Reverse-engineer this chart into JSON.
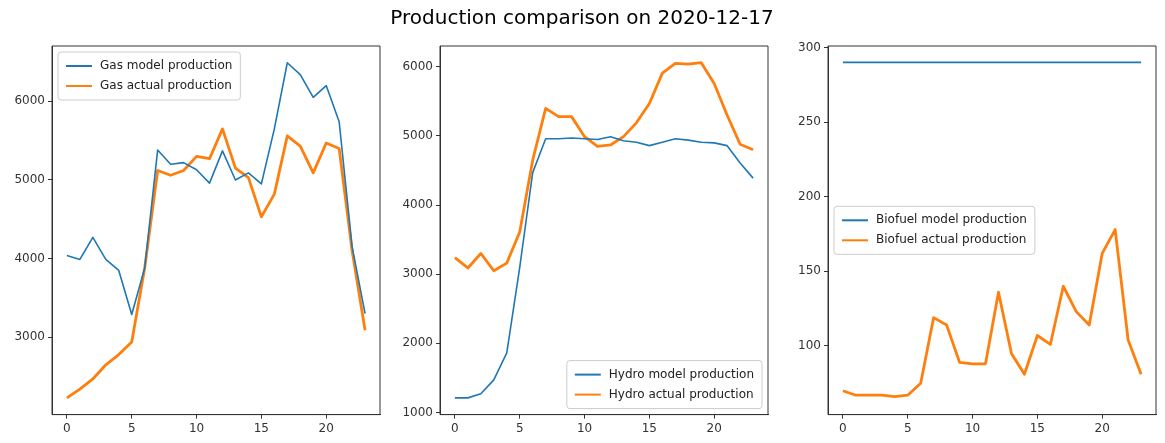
{
  "chart_data": [
    {
      "type": "line",
      "x": [
        0,
        1,
        2,
        3,
        4,
        5,
        6,
        7,
        8,
        9,
        10,
        11,
        12,
        13,
        14,
        15,
        16,
        17,
        18,
        19,
        20,
        21,
        22,
        23
      ],
      "xlim": [
        -1.15,
        24.15
      ],
      "xticks": [
        0,
        5,
        10,
        15,
        20
      ],
      "ylim": [
        2017,
        6703
      ],
      "yticks": [
        3000,
        4000,
        5000,
        6000
      ],
      "grid": false,
      "legend": "top left",
      "series": [
        {
          "name": "Gas model production",
          "color": "#1f77b4",
          "values": [
            4040,
            3990,
            4270,
            3990,
            3850,
            3290,
            3880,
            5380,
            5200,
            5220,
            5130,
            4960,
            5370,
            5000,
            5090,
            4950,
            5650,
            6490,
            6340,
            6050,
            6200,
            5740,
            4150,
            3300
          ]
        },
        {
          "name": "Gas actual production",
          "color": "#ff7f0e",
          "values": [
            2230,
            2340,
            2470,
            2650,
            2780,
            2940,
            3880,
            5120,
            5060,
            5120,
            5300,
            5270,
            5650,
            5150,
            5030,
            4530,
            4820,
            5560,
            5430,
            5090,
            5470,
            5400,
            4100,
            3090
          ]
        }
      ]
    },
    {
      "type": "line",
      "title": "Production comparison on 2020-12-17",
      "x": [
        0,
        1,
        2,
        3,
        4,
        5,
        6,
        7,
        8,
        9,
        10,
        11,
        12,
        13,
        14,
        15,
        16,
        17,
        18,
        19,
        20,
        21,
        22,
        23
      ],
      "xlim": [
        -1.15,
        24.15
      ],
      "xticks": [
        0,
        5,
        10,
        15,
        20
      ],
      "ylim": [
        968,
        6302
      ],
      "yticks": [
        1000,
        2000,
        3000,
        4000,
        5000,
        6000
      ],
      "grid": false,
      "legend": "bottom right",
      "series": [
        {
          "name": "Hydro model production",
          "color": "#1f77b4",
          "values": [
            1210,
            1210,
            1270,
            1470,
            1860,
            3100,
            4470,
            4960,
            4960,
            4970,
            4960,
            4950,
            4990,
            4930,
            4910,
            4860,
            4910,
            4960,
            4940,
            4910,
            4900,
            4860,
            4610,
            4390
          ]
        },
        {
          "name": "Hydro actual production",
          "color": "#ff7f0e",
          "values": [
            3240,
            3090,
            3300,
            3050,
            3160,
            3610,
            4650,
            5400,
            5280,
            5280,
            4990,
            4850,
            4870,
            4990,
            5190,
            5470,
            5910,
            6050,
            6040,
            6060,
            5760,
            5300,
            4880,
            4800
          ]
        }
      ]
    },
    {
      "type": "line",
      "x": [
        0,
        1,
        2,
        3,
        4,
        5,
        6,
        7,
        8,
        9,
        10,
        11,
        12,
        13,
        14,
        15,
        16,
        17,
        18,
        19,
        20,
        21,
        22,
        23
      ],
      "xlim": [
        -1.15,
        24.15
      ],
      "xticks": [
        0,
        5,
        10,
        15,
        20
      ],
      "ylim": [
        54,
        301
      ],
      "yticks": [
        100,
        150,
        200,
        250,
        300
      ],
      "grid": false,
      "legend": "left",
      "series": [
        {
          "name": "Biofuel model production",
          "color": "#1f77b4",
          "values": [
            290,
            290,
            290,
            290,
            290,
            290,
            290,
            290,
            290,
            290,
            290,
            290,
            290,
            290,
            290,
            290,
            290,
            290,
            290,
            290,
            290,
            290,
            290,
            290
          ]
        },
        {
          "name": "Biofuel actual production",
          "color": "#ff7f0e",
          "values": [
            70,
            67,
            67,
            67,
            66,
            67,
            75,
            119,
            114,
            89,
            88,
            88,
            136,
            95,
            81,
            107,
            101,
            140,
            123,
            114,
            162,
            178,
            104,
            81
          ]
        }
      ]
    }
  ]
}
